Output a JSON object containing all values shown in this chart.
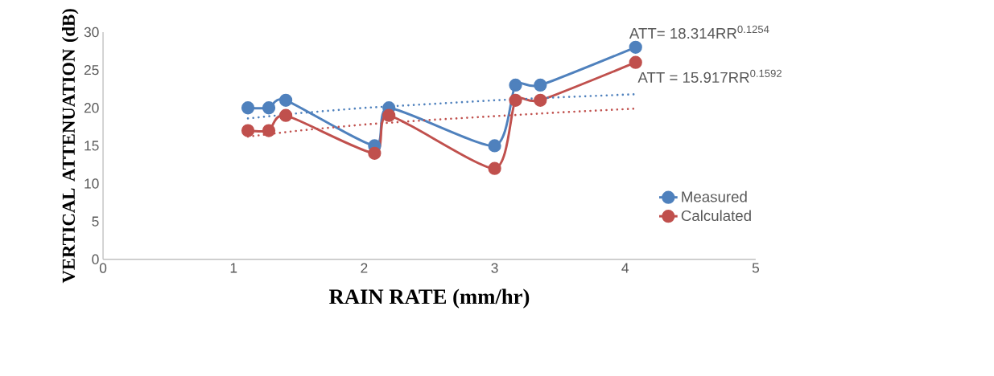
{
  "chart_data": {
    "type": "line",
    "xlabel": "RAIN RATE (mm/hr)",
    "ylabel": "VERTICAL ATTENUATION (dB)",
    "xlim": [
      0,
      5
    ],
    "xticks": [
      0,
      1,
      2,
      3,
      4,
      5
    ],
    "ylim": [
      0,
      30
    ],
    "yticks": [
      0,
      5,
      10,
      15,
      20,
      25,
      30
    ],
    "grid": false,
    "legend": "right",
    "marker": "circle",
    "annotations": [
      "ATT= 18.314RR$^{0.1254}$",
      "ATT = 15.917RR$^{0.1592}$"
    ],
    "series": [
      {
        "name": "Measured",
        "color": "#4f81bd",
        "x": [
          1.11,
          1.27,
          1.4,
          2.08,
          2.19,
          3.0,
          3.16,
          3.35,
          4.08
        ],
        "values": [
          20,
          20,
          21,
          15,
          20,
          15,
          23,
          23,
          28
        ]
      },
      {
        "name": "Calculated",
        "color": "#c0504d",
        "x": [
          1.11,
          1.27,
          1.4,
          2.08,
          2.19,
          3.0,
          3.16,
          3.35,
          4.08
        ],
        "values": [
          17,
          17,
          19,
          14,
          19,
          12,
          21,
          21,
          26
        ]
      },
      {
        "color": "#4f81bd",
        "marker": "none",
        "line_style": "dotted",
        "x": [
          1.11,
          1.5,
          2.0,
          2.5,
          3.0,
          3.5,
          4.08
        ],
        "values": [
          18.6,
          19.3,
          20.0,
          20.5,
          21.0,
          21.4,
          21.8
        ]
      },
      {
        "color": "#c0504d",
        "marker": "none",
        "line_style": "dotted",
        "x": [
          1.11,
          1.5,
          2.0,
          2.5,
          3.0,
          3.5,
          4.08
        ],
        "values": [
          16.2,
          17.0,
          17.8,
          18.4,
          18.9,
          19.4,
          19.9
        ]
      }
    ]
  }
}
